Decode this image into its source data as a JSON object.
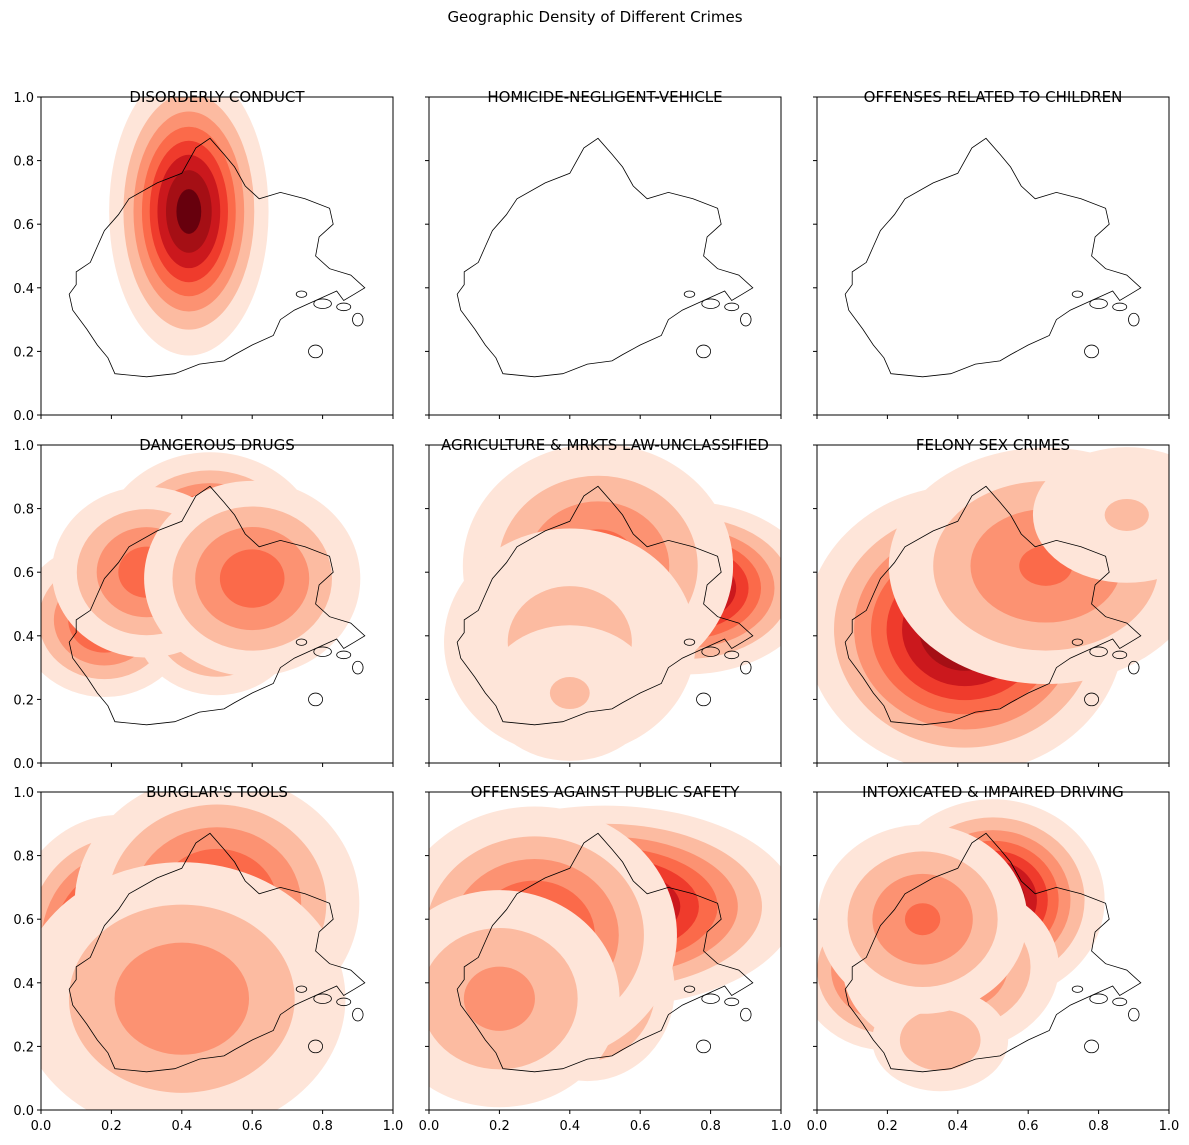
{
  "figure": {
    "title": "Geographic Density of Different Crimes"
  },
  "colors": {
    "cmap": [
      "#fee5d9",
      "#fcbba1",
      "#fc9272",
      "#fb6a4a",
      "#ef3b2c",
      "#cb181d",
      "#a50f15",
      "#67000d"
    ],
    "outline": "#000000"
  },
  "chart_data": [
    {
      "type": "contour",
      "title": "DISORDERLY CONDUCT",
      "xlim": [
        0,
        1
      ],
      "ylim": [
        0,
        1
      ],
      "xticks": [
        "0.0",
        "0.2",
        "0.4",
        "0.6",
        "0.8",
        "1.0"
      ],
      "yticks": [
        "0.0",
        "0.2",
        "0.4",
        "0.6",
        "0.8",
        "1.0"
      ],
      "hotspots": [
        {
          "x": 0.42,
          "y": 0.64,
          "intensity": 1.0,
          "sx": 0.05,
          "sy": 0.1
        }
      ]
    },
    {
      "type": "contour",
      "title": "HOMICIDE-NEGLIGENT-VEHICLE",
      "xlim": [
        0,
        1
      ],
      "ylim": [
        0,
        1
      ],
      "xticks": [
        "0.0",
        "0.2",
        "0.4",
        "0.6",
        "0.8",
        "1.0"
      ],
      "yticks": [
        "0.0",
        "0.2",
        "0.4",
        "0.6",
        "0.8",
        "1.0"
      ],
      "hotspots": []
    },
    {
      "type": "contour",
      "title": "OFFENSES RELATED TO CHILDREN",
      "xlim": [
        0,
        1
      ],
      "ylim": [
        0,
        1
      ],
      "xticks": [
        "0.0",
        "0.2",
        "0.4",
        "0.6",
        "0.8",
        "1.0"
      ],
      "yticks": [
        "0.0",
        "0.2",
        "0.4",
        "0.6",
        "0.8",
        "1.0"
      ],
      "hotspots": []
    },
    {
      "type": "contour",
      "title": "DANGEROUS DRUGS",
      "xlim": [
        0,
        1
      ],
      "ylim": [
        0,
        1
      ],
      "xticks": [
        "0.0",
        "0.2",
        "0.4",
        "0.6",
        "0.8",
        "1.0"
      ],
      "yticks": [
        "0.0",
        "0.2",
        "0.4",
        "0.6",
        "0.8",
        "1.0"
      ],
      "hotspots": [
        {
          "x": 0.48,
          "y": 0.66,
          "intensity": 1.0,
          "sx": 0.07,
          "sy": 0.07
        },
        {
          "x": 0.18,
          "y": 0.45,
          "intensity": 0.65,
          "sx": 0.06,
          "sy": 0.06
        },
        {
          "x": 0.5,
          "y": 0.45,
          "intensity": 0.6,
          "sx": 0.06,
          "sy": 0.06
        },
        {
          "x": 0.3,
          "y": 0.6,
          "intensity": 0.55,
          "sx": 0.07,
          "sy": 0.07
        },
        {
          "x": 0.6,
          "y": 0.58,
          "intensity": 0.55,
          "sx": 0.08,
          "sy": 0.08
        }
      ]
    },
    {
      "type": "contour",
      "title": "AGRICULTURE & MRKTS LAW-UNCLASSIFIED",
      "xlim": [
        0,
        1
      ],
      "ylim": [
        0,
        1
      ],
      "xticks": [
        "0.0",
        "0.2",
        "0.4",
        "0.6",
        "0.8",
        "1.0"
      ],
      "yticks": [
        "0.0",
        "0.2",
        "0.4",
        "0.6",
        "0.8",
        "1.0"
      ],
      "hotspots": [
        {
          "x": 0.73,
          "y": 0.55,
          "intensity": 1.0,
          "sx": 0.08,
          "sy": 0.06
        },
        {
          "x": 0.48,
          "y": 0.62,
          "intensity": 0.55,
          "sx": 0.1,
          "sy": 0.1
        },
        {
          "x": 0.4,
          "y": 0.38,
          "intensity": 0.3,
          "sx": 0.12,
          "sy": 0.12
        },
        {
          "x": 0.4,
          "y": 0.22,
          "intensity": 0.25,
          "sx": 0.09,
          "sy": 0.08
        }
      ]
    },
    {
      "type": "contour",
      "title": "FELONY SEX CRIMES",
      "xlim": [
        0,
        1
      ],
      "ylim": [
        0,
        1
      ],
      "xticks": [
        "0.0",
        "0.2",
        "0.4",
        "0.6",
        "0.8",
        "1.0"
      ],
      "yticks": [
        "0.0",
        "0.2",
        "0.4",
        "0.6",
        "0.8",
        "1.0"
      ],
      "hotspots": [
        {
          "x": 0.42,
          "y": 0.42,
          "intensity": 1.0,
          "sx": 0.1,
          "sy": 0.1
        },
        {
          "x": 0.65,
          "y": 0.62,
          "intensity": 0.5,
          "sx": 0.12,
          "sy": 0.1
        },
        {
          "x": 0.88,
          "y": 0.78,
          "intensity": 0.25,
          "sx": 0.1,
          "sy": 0.08
        }
      ]
    },
    {
      "type": "contour",
      "title": "BURGLAR'S TOOLS",
      "xlim": [
        0,
        1
      ],
      "ylim": [
        0,
        1
      ],
      "xticks": [
        "0.0",
        "0.2",
        "0.4",
        "0.6",
        "0.8",
        "1.0"
      ],
      "yticks": [
        "0.0",
        "0.2",
        "0.4",
        "0.6",
        "0.8",
        "1.0"
      ],
      "hotspots": [
        {
          "x": 0.22,
          "y": 0.52,
          "intensity": 1.0,
          "sx": 0.07,
          "sy": 0.09
        },
        {
          "x": 0.5,
          "y": 0.65,
          "intensity": 0.65,
          "sx": 0.1,
          "sy": 0.1
        },
        {
          "x": 0.4,
          "y": 0.35,
          "intensity": 0.45,
          "sx": 0.13,
          "sy": 0.12
        }
      ]
    },
    {
      "type": "contour",
      "title": "OFFENSES AGAINST PUBLIC SAFETY",
      "xlim": [
        0,
        1
      ],
      "ylim": [
        0,
        1
      ],
      "xticks": [
        "0.0",
        "0.2",
        "0.4",
        "0.6",
        "0.8",
        "1.0"
      ],
      "yticks": [
        "0.0",
        "0.2",
        "0.4",
        "0.6",
        "0.8",
        "1.0"
      ],
      "hotspots": [
        {
          "x": 0.5,
          "y": 0.64,
          "intensity": 1.0,
          "sx": 0.12,
          "sy": 0.07
        },
        {
          "x": 0.45,
          "y": 0.38,
          "intensity": 0.7,
          "sx": 0.06,
          "sy": 0.07
        },
        {
          "x": 0.3,
          "y": 0.55,
          "intensity": 0.65,
          "sx": 0.1,
          "sy": 0.1
        },
        {
          "x": 0.2,
          "y": 0.35,
          "intensity": 0.4,
          "sx": 0.1,
          "sy": 0.1
        }
      ]
    },
    {
      "type": "contour",
      "title": "INTOXICATED & IMPAIRED DRIVING",
      "xlim": [
        0,
        1
      ],
      "ylim": [
        0,
        1
      ],
      "xticks": [
        "0.0",
        "0.2",
        "0.4",
        "0.6",
        "0.8",
        "1.0"
      ],
      "yticks": [
        "0.0",
        "0.2",
        "0.4",
        "0.6",
        "0.8",
        "1.0"
      ],
      "hotspots": [
        {
          "x": 0.5,
          "y": 0.66,
          "intensity": 1.0,
          "sx": 0.07,
          "sy": 0.07
        },
        {
          "x": 0.2,
          "y": 0.44,
          "intensity": 0.75,
          "sx": 0.06,
          "sy": 0.06
        },
        {
          "x": 0.38,
          "y": 0.45,
          "intensity": 0.55,
          "sx": 0.08,
          "sy": 0.07
        },
        {
          "x": 0.35,
          "y": 0.22,
          "intensity": 0.35,
          "sx": 0.06,
          "sy": 0.05
        },
        {
          "x": 0.3,
          "y": 0.6,
          "intensity": 0.5,
          "sx": 0.08,
          "sy": 0.08
        }
      ]
    }
  ]
}
